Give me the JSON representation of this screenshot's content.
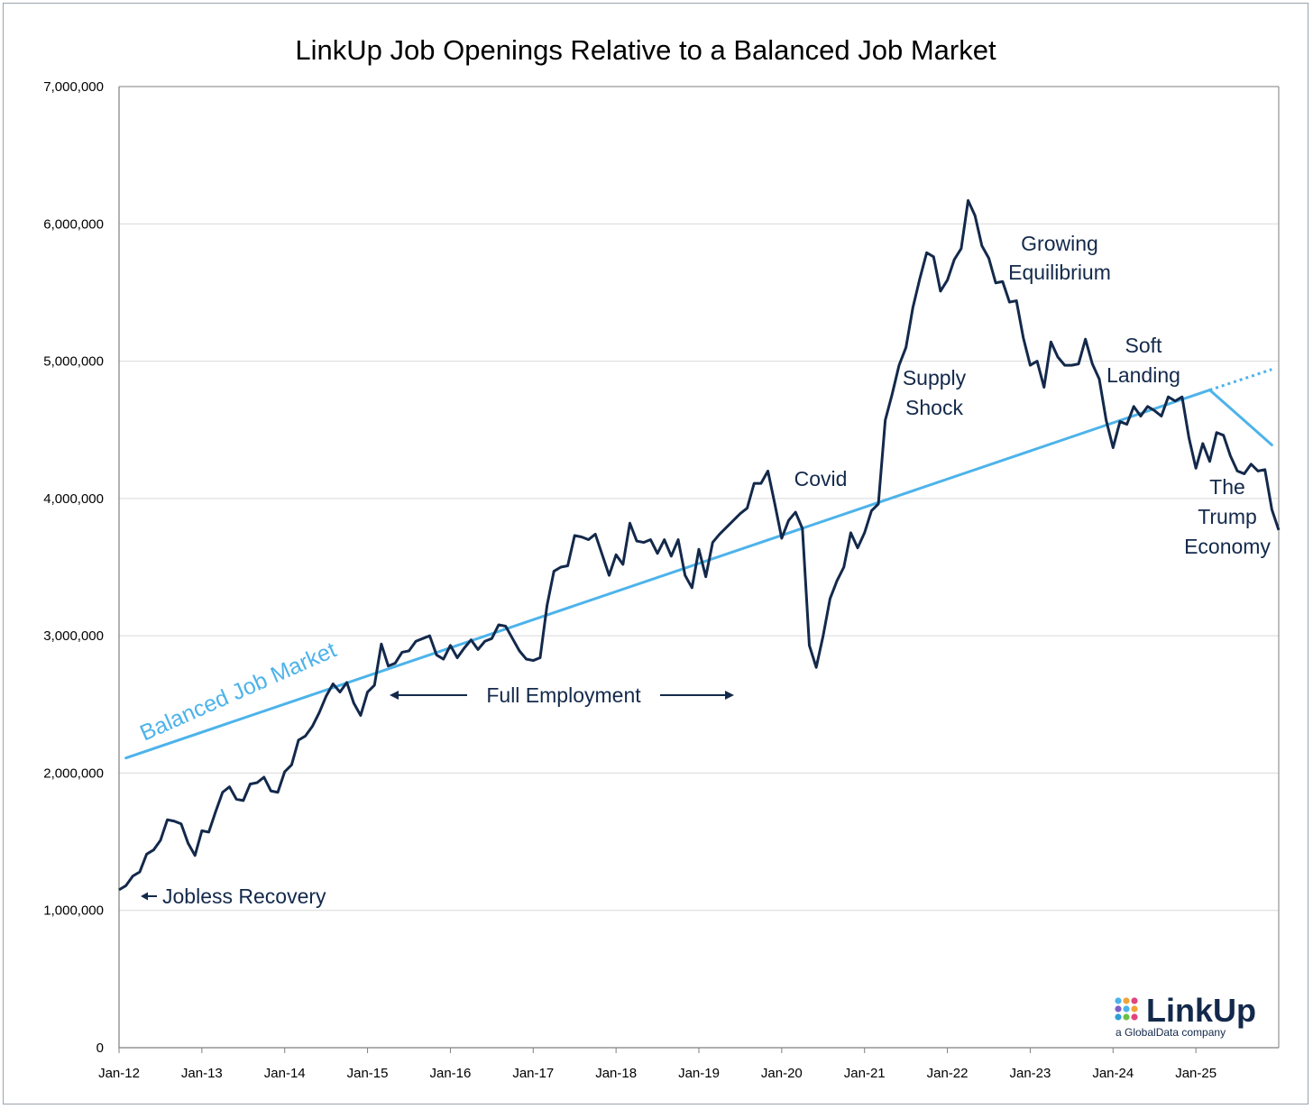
{
  "chart_data": {
    "type": "line",
    "title": "LinkUp Job Openings Relative to a Balanced Job Market",
    "xlabel": "",
    "ylabel": "",
    "ylim": [
      0,
      7000000
    ],
    "x_start": "Jan-12",
    "x_end": "Dec-25",
    "x_tick_labels": [
      "Jan-12",
      "Jan-13",
      "Jan-14",
      "Jan-15",
      "Jan-16",
      "Jan-17",
      "Jan-18",
      "Jan-19",
      "Jan-20",
      "Jan-21",
      "Jan-22",
      "Jan-23",
      "Jan-24",
      "Jan-25"
    ],
    "y_tick_labels": [
      "0",
      "1,000,000",
      "2,000,000",
      "3,000,000",
      "4,000,000",
      "5,000,000",
      "6,000,000",
      "7,000,000"
    ],
    "y_tick_values": [
      0,
      1000000,
      2000000,
      3000000,
      4000000,
      5000000,
      6000000,
      7000000
    ],
    "series": [
      {
        "name": "Job Openings",
        "color": "#13294b",
        "values": [
          1150000,
          1180000,
          1250000,
          1280000,
          1410000,
          1440000,
          1510000,
          1660000,
          1650000,
          1630000,
          1490000,
          1400000,
          1580000,
          1570000,
          1720000,
          1860000,
          1900000,
          1810000,
          1800000,
          1920000,
          1930000,
          1970000,
          1870000,
          1860000,
          2010000,
          2060000,
          2240000,
          2270000,
          2340000,
          2440000,
          2560000,
          2650000,
          2590000,
          2660000,
          2510000,
          2420000,
          2590000,
          2640000,
          2940000,
          2780000,
          2800000,
          2880000,
          2890000,
          2960000,
          2980000,
          3000000,
          2860000,
          2830000,
          2930000,
          2840000,
          2910000,
          2970000,
          2900000,
          2960000,
          2980000,
          3080000,
          3070000,
          2980000,
          2890000,
          2830000,
          2820000,
          2840000,
          3220000,
          3470000,
          3500000,
          3510000,
          3730000,
          3720000,
          3700000,
          3740000,
          3590000,
          3440000,
          3590000,
          3520000,
          3820000,
          3690000,
          3680000,
          3700000,
          3600000,
          3700000,
          3580000,
          3700000,
          3440000,
          3350000,
          3630000,
          3430000,
          3680000,
          3740000,
          3790000,
          3840000,
          3890000,
          3930000,
          4110000,
          4110000,
          4200000,
          3960000,
          3710000,
          3840000,
          3900000,
          3780000,
          2930000,
          2770000,
          3000000,
          3270000,
          3400000,
          3500000,
          3750000,
          3640000,
          3750000,
          3910000,
          3960000,
          4570000,
          4760000,
          4970000,
          5100000,
          5390000,
          5600000,
          5790000,
          5760000,
          5510000,
          5590000,
          5740000,
          5820000,
          6170000,
          6060000,
          5840000,
          5750000,
          5570000,
          5580000,
          5430000,
          5440000,
          5170000,
          4970000,
          5000000,
          4810000,
          5140000,
          5030000,
          4970000,
          4970000,
          4980000,
          5160000,
          4980000,
          4870000,
          4570000,
          4370000,
          4560000,
          4540000,
          4670000,
          4600000,
          4670000,
          4640000,
          4600000,
          4740000,
          4710000,
          4740000,
          4440000,
          4220000,
          4400000,
          4270000,
          4480000,
          4460000,
          4310000,
          4200000,
          4180000,
          4250000,
          4200000,
          4210000,
          3920000,
          3770000
        ]
      },
      {
        "name": "Balanced Job Market",
        "color": "#4db3ea",
        "x_start_index": 1,
        "x_end_index": 158,
        "values": [
          2110000,
          4790000
        ]
      },
      {
        "name": "Balanced Job Market (revised)",
        "color": "#4db3ea",
        "x_start_index": 158,
        "x_end_index": 167,
        "values": [
          4790000,
          4390000
        ]
      },
      {
        "name": "Balanced Job Market (projected)",
        "color": "#4db3ea",
        "dashed": true,
        "x_start_index": 158,
        "x_end_index": 167,
        "values": [
          4790000,
          4940000
        ]
      }
    ],
    "annotations": {
      "balanced": "Balanced Job Market",
      "jobless": "Jobless Recovery",
      "full_employment": "Full Employment",
      "covid": "Covid",
      "supply_1": "Supply",
      "supply_2": "Shock",
      "growing_1": "Growing",
      "growing_2": "Equilibrium",
      "soft_1": "Soft",
      "soft_2": "Landing",
      "trump_1": "The",
      "trump_2": "Trump",
      "trump_3": "Economy"
    },
    "grid": true
  },
  "logo": {
    "brand": "LinkUp",
    "tagline": "a GlobalData company",
    "dot_colors": [
      "#4db3ea",
      "#f2a33a",
      "#e0457b",
      "#7b61c9",
      "#4db3ea",
      "#f2a33a",
      "#2f9fd8",
      "#6cc04a",
      "#e0457b"
    ]
  }
}
